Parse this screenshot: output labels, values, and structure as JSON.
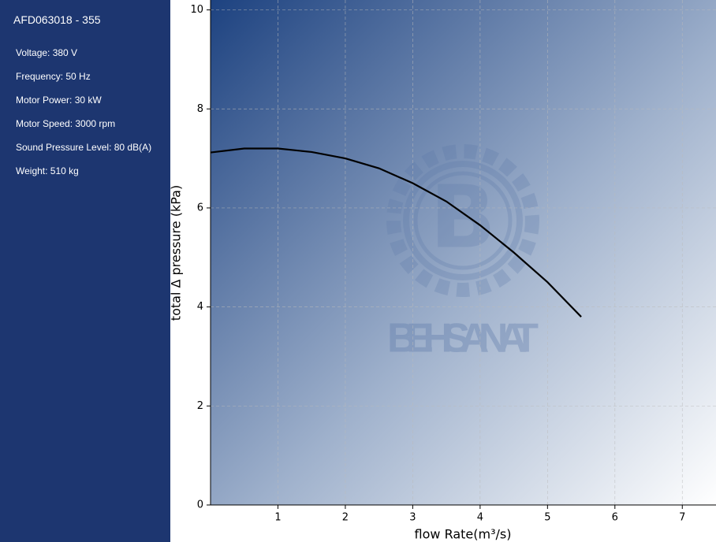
{
  "sidebar": {
    "title": "AFD063018 - 355",
    "specs": [
      "Voltage: 380 V",
      "Frequency: 50 Hz",
      "Motor Power: 30 kW",
      "Motor Speed: 3000 rpm",
      "Sound Pressure Level: 80 dB(A)",
      "Weight: 510 kg"
    ]
  },
  "chart_data": {
    "type": "line",
    "x_label": "flow Rate(m³/s)",
    "y_label": "total Δ pressure (kPa)",
    "watermark": "BEH SANAT",
    "x": [
      0,
      0.5,
      1,
      1.5,
      2,
      2.5,
      3,
      3.5,
      4,
      4.5,
      5,
      5.5
    ],
    "values": [
      7.12,
      7.2,
      7.2,
      7.13,
      7.0,
      6.8,
      6.5,
      6.13,
      5.65,
      5.1,
      4.5,
      3.8
    ],
    "color": "#000000",
    "xlim": [
      0,
      7.5
    ],
    "ylim": [
      0,
      10.2
    ],
    "xticks": [
      1,
      2,
      3,
      4,
      5,
      6,
      7
    ],
    "yticks": [
      0,
      2,
      4,
      6,
      8,
      10
    ],
    "grid": true
  }
}
